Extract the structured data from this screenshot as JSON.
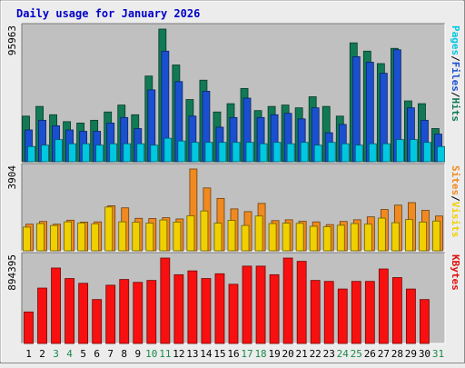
{
  "chart_data": {
    "type": "bar",
    "title": "Daily usage for January 2026",
    "categories": [
      "1",
      "2",
      "3",
      "4",
      "5",
      "6",
      "7",
      "8",
      "9",
      "10",
      "11",
      "12",
      "13",
      "14",
      "15",
      "16",
      "17",
      "18",
      "19",
      "20",
      "21",
      "22",
      "23",
      "24",
      "25",
      "26",
      "27",
      "28",
      "29",
      "30",
      "31"
    ],
    "weekend_days": [
      "3",
      "4",
      "10",
      "11",
      "17",
      "18",
      "24",
      "25",
      "31"
    ],
    "panels": [
      {
        "id": "hits",
        "max_label": "95963",
        "ymax": 95963,
        "side_labels": [
          {
            "text": "Pages",
            "color": "#00c8e0"
          },
          {
            "text": "/",
            "color": "#000000"
          },
          {
            "text": "Files",
            "color": "#1a4fd0"
          },
          {
            "text": "/",
            "color": "#000000"
          },
          {
            "text": "Hits",
            "color": "#117a55"
          }
        ],
        "series": [
          {
            "name": "Hits",
            "color": "#117a55",
            "values": [
              33000,
              40000,
              34000,
              29000,
              28000,
              30000,
              36000,
              41000,
              34000,
              62000,
              95963,
              70000,
              45000,
              59000,
              36000,
              42000,
              53000,
              37000,
              40000,
              41000,
              39000,
              47000,
              40000,
              33000,
              86000,
              80000,
              71000,
              82000,
              44000,
              42000,
              24000
            ]
          },
          {
            "name": "Files",
            "color": "#1a4fd0",
            "values": [
              23000,
              30000,
              26000,
              23000,
              22000,
              22000,
              28000,
              32000,
              24000,
              52000,
              80000,
              58000,
              33000,
              51000,
              25000,
              32000,
              46000,
              32000,
              34000,
              35000,
              31000,
              39000,
              21000,
              27000,
              76000,
              72000,
              64000,
              81000,
              39000,
              30000,
              20000
            ]
          },
          {
            "name": "Pages",
            "color": "#00c8e0",
            "values": [
              11000,
              12000,
              16000,
              13000,
              13000,
              12000,
              13000,
              13000,
              13000,
              12000,
              17000,
              15000,
              14000,
              14000,
              14000,
              14000,
              14000,
              13000,
              14000,
              13000,
              14000,
              12000,
              14000,
              13000,
              12000,
              13000,
              13000,
              16000,
              16000,
              14000,
              11000
            ]
          }
        ]
      },
      {
        "id": "visits",
        "max_label": "3904",
        "ymax": 3904,
        "side_labels": [
          {
            "text": "Sites",
            "color": "#f08a20"
          },
          {
            "text": "/",
            "color": "#000000"
          },
          {
            "text": "Visits",
            "color": "#f0d000"
          }
        ],
        "series": [
          {
            "name": "Visits",
            "color": "#f08a20",
            "values": [
              1270,
              1400,
              1270,
              1460,
              1370,
              1380,
              2150,
              2050,
              1550,
              1540,
              1580,
              1520,
              3904,
              3000,
              2500,
              2000,
              1870,
              2260,
              1440,
              1480,
              1410,
              1380,
              1250,
              1400,
              1480,
              1620,
              1970,
              2180,
              2300,
              1930,
              1660
            ]
          },
          {
            "name": "Sites",
            "color": "#f0d000",
            "values": [
              1130,
              1300,
              1210,
              1380,
              1330,
              1290,
              2090,
              1380,
              1360,
              1320,
              1470,
              1370,
              1670,
              1900,
              1320,
              1450,
              1210,
              1660,
              1300,
              1320,
              1310,
              1170,
              1150,
              1220,
              1300,
              1270,
              1560,
              1340,
              1490,
              1370,
              1420
            ]
          }
        ]
      },
      {
        "id": "kbytes",
        "max_label": "894395",
        "ymax": 894395,
        "side_labels": [
          {
            "text": "KBytes",
            "color": "#e01010"
          }
        ],
        "series": [
          {
            "name": "KBytes",
            "color": "#f81010",
            "values": [
              330000,
              580000,
              790000,
              680000,
              630000,
              460000,
              610000,
              670000,
              640000,
              660000,
              894395,
              720000,
              760000,
              680000,
              730000,
              620000,
              810000,
              810000,
              720000,
              894395,
              860000,
              660000,
              650000,
              570000,
              650000,
              650000,
              780000,
              690000,
              570000,
              460000,
              0
            ]
          }
        ]
      }
    ],
    "grid": false
  }
}
